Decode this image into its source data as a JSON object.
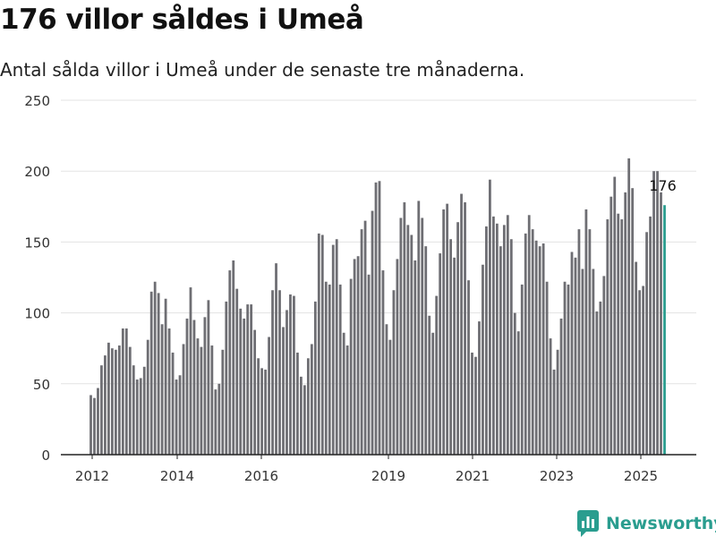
{
  "title": "176 villor såldes i Umeå",
  "subtitle": "Antal sålda villor i Umeå under de senaste tre månaderna.",
  "brand": "Newsworthy",
  "colors": {
    "bar": "#6e6e73",
    "highlight": "#2a9d8f",
    "grid": "#e3e3e3",
    "brand": "#2a9d8f"
  },
  "chart_data": {
    "type": "bar",
    "title": "176 villor såldes i Umeå",
    "subtitle": "Antal sålda villor i Umeå under de senaste tre månaderna.",
    "xlabel": "",
    "ylabel": "",
    "ylim": [
      0,
      250
    ],
    "yticks": [
      0,
      50,
      100,
      150,
      200,
      250
    ],
    "grid": true,
    "x_tick_labels": [
      "2012",
      "2014",
      "2016",
      "2019",
      "2021",
      "2023",
      "2025"
    ],
    "highlight_label": "176",
    "values": [
      42,
      40,
      47,
      63,
      70,
      79,
      75,
      74,
      77,
      89,
      89,
      76,
      63,
      53,
      54,
      62,
      81,
      115,
      122,
      114,
      92,
      110,
      89,
      72,
      53,
      56,
      78,
      96,
      118,
      95,
      82,
      76,
      97,
      109,
      77,
      46,
      50,
      74,
      108,
      130,
      137,
      117,
      103,
      96,
      106,
      106,
      88,
      68,
      61,
      60,
      83,
      116,
      135,
      116,
      90,
      102,
      113,
      112,
      72,
      55,
      49,
      68,
      78,
      108,
      156,
      155,
      122,
      120,
      148,
      152,
      120,
      86,
      77,
      124,
      138,
      140,
      159,
      165,
      127,
      172,
      192,
      193,
      130,
      92,
      81,
      116,
      138,
      167,
      178,
      162,
      155,
      137,
      179,
      167,
      147,
      98,
      86,
      112,
      142,
      173,
      177,
      152,
      139,
      164,
      184,
      178,
      123,
      72,
      69,
      94,
      134,
      161,
      194,
      168,
      163,
      147,
      162,
      169,
      152,
      100,
      87,
      120,
      156,
      169,
      159,
      151,
      147,
      149,
      122,
      82,
      60,
      74,
      96,
      122,
      120,
      143,
      139,
      159,
      131,
      173,
      159,
      131,
      101,
      108,
      126,
      166,
      182,
      196,
      170,
      166,
      185,
      209,
      188,
      136,
      116,
      119,
      157,
      168,
      200,
      200,
      185,
      176
    ]
  }
}
